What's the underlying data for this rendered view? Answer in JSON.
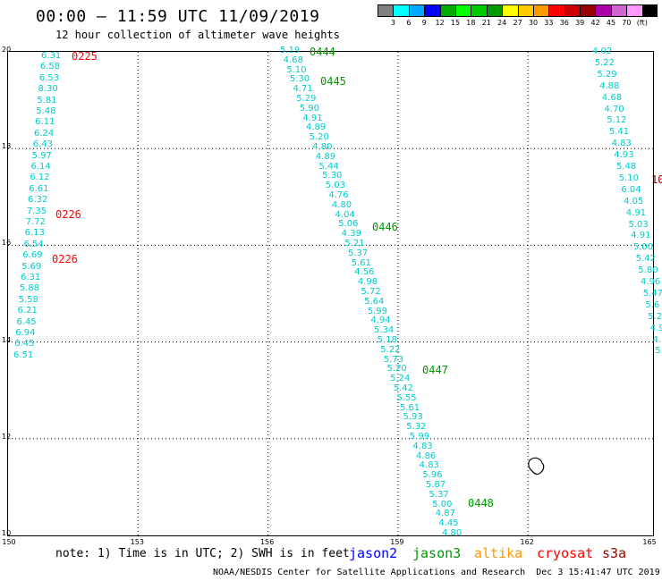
{
  "title": "00:00 — 11:59 UTC 11/09/2019",
  "subtitle": "12 hour collection of altimeter wave heights",
  "legend": {
    "colors": [
      "#808080",
      "#00ffff",
      "#00aaff",
      "#0000ff",
      "#00aa00",
      "#00ff00",
      "#00cc00",
      "#009900",
      "#ffff00",
      "#ffcc00",
      "#ff9900",
      "#ff0000",
      "#cc0000",
      "#990000",
      "#aa00aa",
      "#cc66cc",
      "#ff99ff",
      "#000000"
    ],
    "labels": [
      "3",
      "6",
      "9",
      "12",
      "15",
      "18",
      "21",
      "24",
      "27",
      "30",
      "33",
      "36",
      "39",
      "42",
      "45",
      "70",
      "(ft)"
    ]
  },
  "axes": {
    "x_ticks": [
      "150",
      "153",
      "156",
      "159",
      "162",
      "165"
    ],
    "y_ticks": [
      "20",
      "18",
      "16",
      "14",
      "12",
      "10"
    ]
  },
  "tracks": [
    {
      "name": "track-west",
      "color": "#00cccc",
      "values": [
        "6.31",
        "6.58",
        "6.53",
        "8.30",
        "5.81",
        "5.48",
        "6.11",
        "6.24",
        "6.43",
        "5.97",
        "6.14",
        "6.12",
        "6.61",
        "6.32",
        "7.35",
        "7.72",
        "6.13",
        "6.54",
        "6.69",
        "5.69",
        "6.31",
        "5.88",
        "5.58",
        "6.21",
        "6.45",
        "6.94",
        "6.45",
        "6.51"
      ]
    },
    {
      "name": "track-center",
      "color": "#00cccc",
      "values": [
        "5.19",
        "4.68",
        "5.10",
        "5.30",
        "4.71",
        "5.29",
        "5.90",
        "4.91",
        "4.89",
        "5.20",
        "4.80",
        "4.89",
        "5.44",
        "5.30",
        "5.03",
        "4.76",
        "4.80",
        "4.04",
        "5.06",
        "4.39",
        "5.21",
        "5.37",
        "5.61",
        "4.56",
        "4.98",
        "5.72",
        "5.64",
        "5.99",
        "4.94",
        "5.34",
        "5.18",
        "5.22",
        "5.73",
        "5.20",
        "5.24",
        "5.42",
        "5.55",
        "5.61",
        "5.93",
        "5.32",
        "5.99",
        "4.83",
        "4.86",
        "4.83",
        "5.96",
        "5.87",
        "5.37",
        "5.00",
        "4.87",
        "4.45",
        "4.80"
      ]
    },
    {
      "name": "track-east",
      "color": "#00cccc",
      "values": [
        "4.02",
        "5.22",
        "5.29",
        "4.88",
        "4.68",
        "4.70",
        "5.12",
        "5.41",
        "4.83",
        "4.93",
        "5.48",
        "5.10",
        "6.04",
        "4.05",
        "4.91",
        "5.03",
        "4.91",
        "5.00",
        "5.42",
        "5.80",
        "4.96",
        "5.47",
        "5.6",
        "5.2",
        "4.9",
        "4.",
        "5."
      ]
    }
  ],
  "passes": [
    {
      "id": "0225",
      "color": "#ff0000"
    },
    {
      "id": "0226",
      "color": "#ff0000"
    },
    {
      "id": "0226",
      "color": "#ff0000"
    },
    {
      "id": "0444",
      "color": "#009900"
    },
    {
      "id": "0445",
      "color": "#009900"
    },
    {
      "id": "0446",
      "color": "#009900"
    },
    {
      "id": "0447",
      "color": "#009900"
    },
    {
      "id": "0448",
      "color": "#009900"
    },
    {
      "id": "10",
      "color": "#990000"
    }
  ],
  "footnote": "note: 1) Time is in UTC; 2) SWH is in feet",
  "satellites": [
    {
      "name": "jason2",
      "color": "#0000ff"
    },
    {
      "name": "jason3",
      "color": "#009900"
    },
    {
      "name": "altika",
      "color": "#ff9900"
    },
    {
      "name": "cryosat",
      "color": "#ff0000"
    },
    {
      "name": "s3a",
      "color": "#990000"
    }
  ],
  "credit": "NOAA/NESDIS Center for Satellite Applications and Research",
  "generated": "Dec  3 15:41:47 UTC 2019"
}
